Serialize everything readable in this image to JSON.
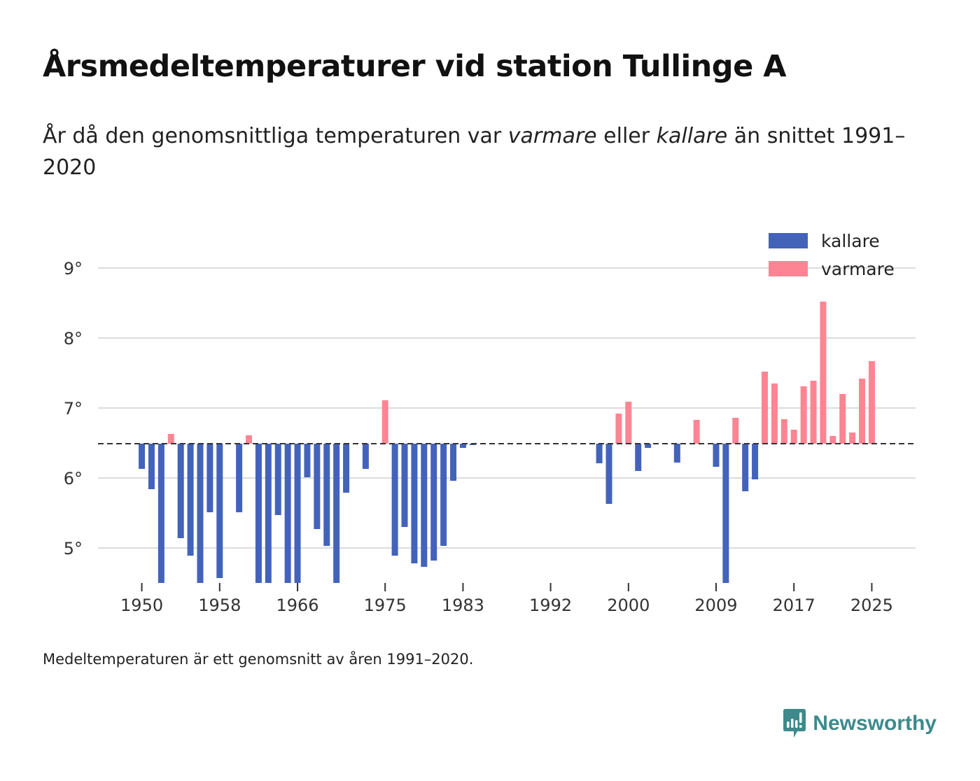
{
  "title": "Årsmedeltemperaturer vid station Tullinge A",
  "subtitle": {
    "prefix": "År då den genomsnittliga temperaturen var ",
    "warm_word": "varmare",
    "middle": " eller ",
    "cold_word": "kallare",
    "suffix": " än snittet 1991–2020"
  },
  "footnote": "Medeltemperaturen är ett genomsnitt av åren 1991–2020.",
  "brand": {
    "name": "Newsworthy",
    "icon": "newsworthy-logo-icon",
    "color": "#3d8a8c"
  },
  "chart_data": {
    "type": "bar",
    "baseline": 6.49,
    "ylim": [
      4.5,
      9.5
    ],
    "yticks": [
      5,
      6,
      7,
      8,
      9
    ],
    "ytick_labels": [
      "5°",
      "6°",
      "7°",
      "8°",
      "9°"
    ],
    "xlim": [
      1945.5,
      2029.5
    ],
    "xticks": [
      1950,
      1958,
      1966,
      1975,
      1983,
      1992,
      2000,
      2009,
      2017,
      2025
    ],
    "xtick_labels": [
      "1950",
      "1958",
      "1966",
      "1975",
      "1983",
      "1992",
      "2000",
      "2009",
      "2017",
      "2025"
    ],
    "grid": true,
    "legend": {
      "placement": "top-right",
      "items": [
        {
          "label": "kallare",
          "color": "#4363bb"
        },
        {
          "label": "varmare",
          "color": "#fd8593"
        }
      ]
    },
    "colors": {
      "colder": "#4363bb",
      "warmer": "#fd8593"
    },
    "x": [
      1950,
      1951,
      1952,
      1953,
      1954,
      1955,
      1956,
      1957,
      1958,
      1960,
      1961,
      1962,
      1963,
      1964,
      1965,
      1966,
      1967,
      1968,
      1969,
      1970,
      1971,
      1973,
      1975,
      1976,
      1977,
      1978,
      1979,
      1980,
      1981,
      1982,
      1983,
      1984,
      1997,
      1998,
      1999,
      2000,
      2001,
      2002,
      2005,
      2007,
      2009,
      2010,
      2011,
      2012,
      2013,
      2014,
      2015,
      2016,
      2017,
      2018,
      2019,
      2020,
      2021,
      2022,
      2023,
      2024,
      2025
    ],
    "values": [
      6.13,
      5.84,
      4.5,
      6.63,
      5.14,
      4.89,
      4.5,
      5.51,
      4.57,
      5.51,
      6.61,
      4.5,
      4.5,
      5.47,
      4.5,
      4.5,
      6.01,
      5.27,
      5.03,
      4.5,
      5.79,
      6.13,
      7.11,
      4.89,
      5.3,
      4.78,
      4.73,
      4.82,
      5.03,
      5.96,
      6.43,
      6.47,
      6.21,
      5.63,
      6.92,
      7.09,
      6.1,
      6.43,
      6.22,
      6.83,
      6.16,
      4.5,
      6.86,
      5.81,
      5.98,
      7.52,
      7.35,
      6.84,
      6.69,
      7.31,
      7.39,
      8.52,
      6.6,
      7.2,
      6.65,
      7.42,
      7.67
    ]
  }
}
